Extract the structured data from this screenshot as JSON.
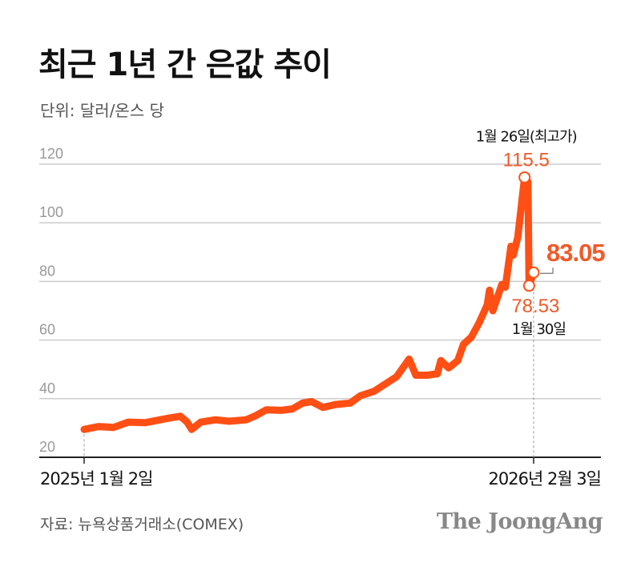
{
  "title": "최근 1년 간 은값 추이",
  "unit": "단위: 달러/온스 당",
  "source": "자료: 뉴욕상품거래소(COMEX)",
  "logo": "The JoongAng",
  "colors": {
    "line": "#ff4f14",
    "label": "#f05a28",
    "grid": "#cccccc"
  },
  "chart_data": {
    "type": "line",
    "title": "최근 1년 간 은값 추이",
    "ylabel": "단위: 달러/온스 당",
    "ylim": [
      20,
      125
    ],
    "yticks": [
      20,
      40,
      60,
      80,
      100,
      120
    ],
    "xlim": [
      "2025-01-02",
      "2026-02-03"
    ],
    "xtick_labels": [
      "2025년 1월 2일",
      "2026년 2월 3일"
    ],
    "grid": true,
    "series": [
      {
        "values": [
          [
            "2025-01-02",
            29.5
          ],
          [
            "2025-01-15",
            30.5
          ],
          [
            "2025-01-28",
            30.2
          ],
          [
            "2025-02-10",
            32.0
          ],
          [
            "2025-02-25",
            31.8
          ],
          [
            "2025-03-10",
            32.8
          ],
          [
            "2025-03-20",
            33.5
          ],
          [
            "2025-03-28",
            34.0
          ],
          [
            "2025-04-03",
            32.0
          ],
          [
            "2025-04-07",
            29.5
          ],
          [
            "2025-04-15",
            32.0
          ],
          [
            "2025-04-28",
            32.8
          ],
          [
            "2025-05-10",
            32.3
          ],
          [
            "2025-05-25",
            32.8
          ],
          [
            "2025-06-03",
            34.3
          ],
          [
            "2025-06-12",
            36.2
          ],
          [
            "2025-06-25",
            36.0
          ],
          [
            "2025-07-05",
            36.5
          ],
          [
            "2025-07-14",
            38.5
          ],
          [
            "2025-07-22",
            39.0
          ],
          [
            "2025-08-01",
            37.0
          ],
          [
            "2025-08-12",
            38.0
          ],
          [
            "2025-08-25",
            38.5
          ],
          [
            "2025-09-03",
            41.0
          ],
          [
            "2025-09-15",
            42.5
          ],
          [
            "2025-09-25",
            45.0
          ],
          [
            "2025-10-05",
            47.5
          ],
          [
            "2025-10-16",
            53.5
          ],
          [
            "2025-10-22",
            48.0
          ],
          [
            "2025-11-01",
            48.0
          ],
          [
            "2025-11-10",
            48.5
          ],
          [
            "2025-11-13",
            53.0
          ],
          [
            "2025-11-20",
            50.5
          ],
          [
            "2025-11-28",
            53.0
          ],
          [
            "2025-12-03",
            58.5
          ],
          [
            "2025-12-10",
            61.0
          ],
          [
            "2025-12-17",
            66.0
          ],
          [
            "2025-12-24",
            72.0
          ],
          [
            "2025-12-26",
            77.0
          ],
          [
            "2025-12-29",
            70.0
          ],
          [
            "2026-01-06",
            79.0
          ],
          [
            "2026-01-09",
            78.0
          ],
          [
            "2026-01-14",
            92.0
          ],
          [
            "2026-01-16",
            89.0
          ],
          [
            "2026-01-20",
            95.0
          ],
          [
            "2026-01-26",
            115.5
          ],
          [
            "2026-01-29",
            114.0
          ],
          [
            "2026-01-30",
            78.53
          ],
          [
            "2026-02-03",
            83.05
          ]
        ]
      }
    ],
    "annotations": [
      {
        "date": "2026-01-26",
        "value": 115.5,
        "label": "115.5",
        "note": "1월 26일(최고가)"
      },
      {
        "date": "2026-01-30",
        "value": 78.53,
        "label": "78.53",
        "note": "1월 30일"
      },
      {
        "date": "2026-02-03",
        "value": 83.05,
        "label": "83.05"
      }
    ]
  }
}
